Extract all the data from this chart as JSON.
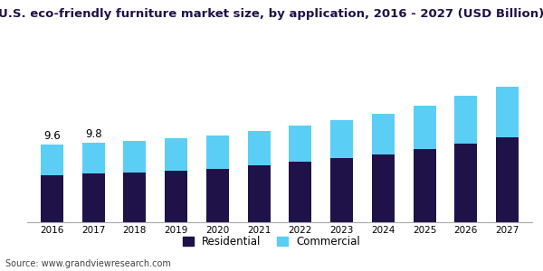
{
  "years": [
    2016,
    2017,
    2018,
    2019,
    2020,
    2021,
    2022,
    2023,
    2024,
    2025,
    2026,
    2027
  ],
  "residential": [
    5.8,
    5.95,
    6.1,
    6.35,
    6.6,
    7.0,
    7.5,
    7.9,
    8.35,
    9.0,
    9.7,
    10.4
  ],
  "commercial": [
    3.8,
    3.85,
    3.9,
    3.95,
    4.05,
    4.2,
    4.4,
    4.65,
    4.95,
    5.3,
    5.8,
    6.3
  ],
  "annotations_idx": [
    0,
    1
  ],
  "annotations_text": [
    "9.6",
    "9.8"
  ],
  "residential_color": "#1e1248",
  "commercial_color": "#5bcef5",
  "title": "U.S. eco-friendly furniture market size, by application, 2016 - 2027 (USD Billion)",
  "title_fontsize": 9.5,
  "title_color": "#1e1248",
  "legend_labels": [
    "Residential",
    "Commercial"
  ],
  "source_text": "Source: www.grandviewresearch.com",
  "background_color": "#ffffff",
  "header_line_color": "#7b3fa0",
  "ylim": [
    0,
    20
  ],
  "bar_width": 0.55
}
